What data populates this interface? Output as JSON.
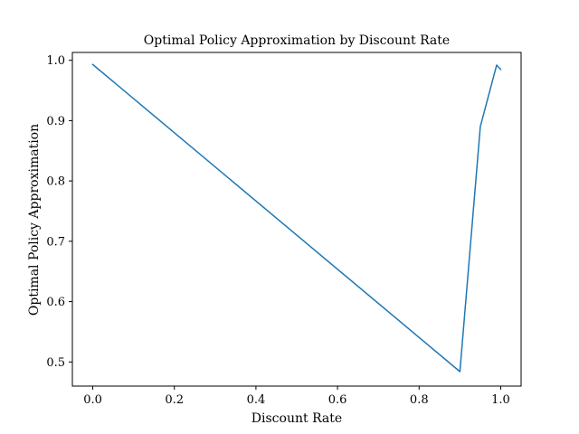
{
  "chart_data": {
    "type": "line",
    "title": "Optimal Policy Approximation by Discount Rate",
    "xlabel": "Discount Rate",
    "ylabel": "Optimal Policy Approximation",
    "xlim": [
      -0.05,
      1.05
    ],
    "ylim": [
      0.46,
      1.013
    ],
    "xticks": [
      0.0,
      0.2,
      0.4,
      0.6,
      0.8,
      1.0
    ],
    "xtick_labels": [
      "0.0",
      "0.2",
      "0.4",
      "0.6",
      "0.8",
      "1.0"
    ],
    "yticks": [
      0.5,
      0.6,
      0.7,
      0.8,
      0.9,
      1.0
    ],
    "ytick_labels": [
      "0.5",
      "0.6",
      "0.7",
      "0.8",
      "0.9",
      "1.0"
    ],
    "grid": false,
    "legend": "none",
    "series": [
      {
        "color": "#1f77b4",
        "x": [
          0.0,
          0.9,
          0.95,
          0.99,
          1.0
        ],
        "y": [
          0.993,
          0.484,
          0.89,
          0.992,
          0.985
        ]
      }
    ]
  }
}
